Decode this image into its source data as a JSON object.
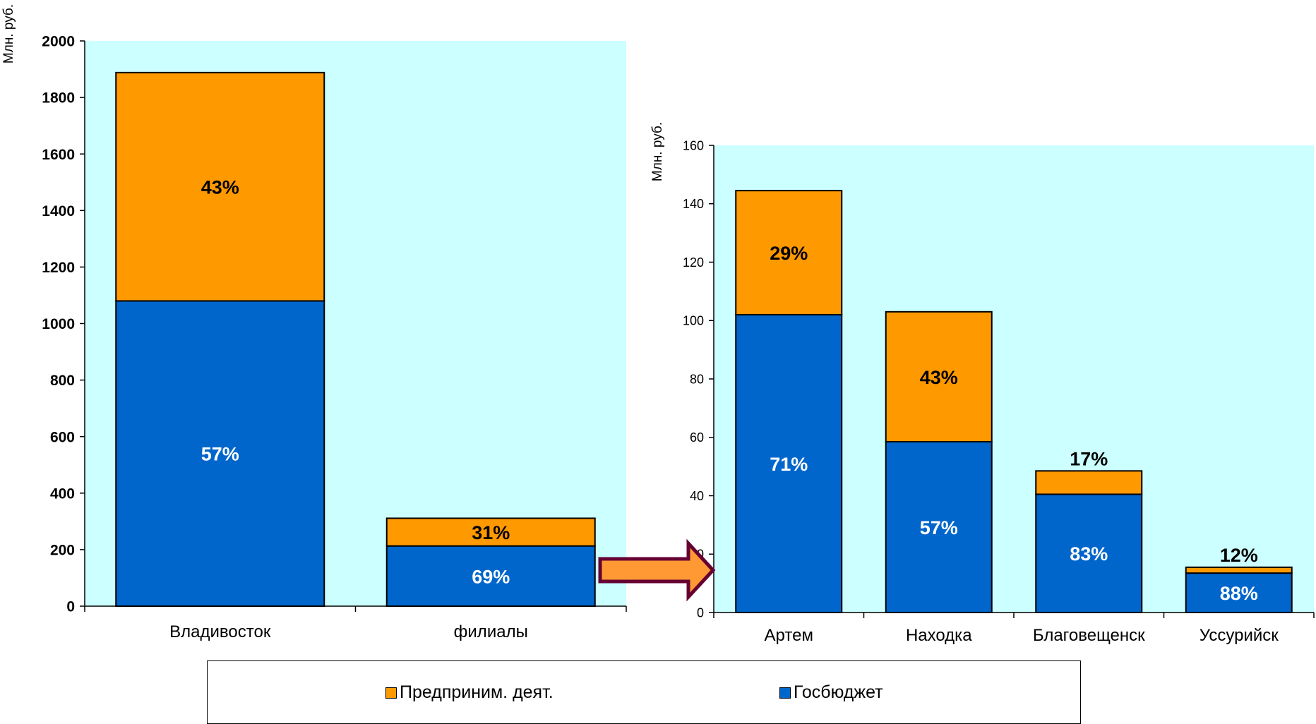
{
  "chart_data": [
    {
      "type": "bar",
      "stacked": true,
      "ylabel": "Млн. руб.",
      "ylim": [
        0,
        2000
      ],
      "yticks": [
        "0",
        "200",
        "400",
        "600",
        "800",
        "1000",
        "1200",
        "1400",
        "1600",
        "1800",
        "2000"
      ],
      "categories": [
        "Владивосток",
        "филиалы"
      ],
      "series": [
        {
          "name": "Госбюджет",
          "values": [
            1080,
            213
          ],
          "labels": [
            "57%",
            "69%"
          ]
        },
        {
          "name": "Предприним. деят.",
          "values": [
            808,
            98
          ],
          "labels": [
            "43%",
            "31%"
          ]
        }
      ],
      "background": "#ccffff",
      "colors": {
        "Госбюджет": "#0066cc",
        "Предприним. деят.": "#ff9900"
      }
    },
    {
      "type": "bar",
      "stacked": true,
      "ylabel": "Млн. руб.",
      "ylim": [
        0,
        160
      ],
      "yticks": [
        "0",
        "20",
        "40",
        "60",
        "80",
        "100",
        "120",
        "140",
        "160"
      ],
      "categories": [
        "Артем",
        "Находка",
        "Благовещенск",
        "Уссурийск"
      ],
      "series": [
        {
          "name": "Госбюджет",
          "values": [
            102,
            58.5,
            40.5,
            13.5
          ],
          "labels": [
            "71%",
            "57%",
            "83%",
            "88%"
          ]
        },
        {
          "name": "Предприним. деят.",
          "values": [
            42.5,
            44.5,
            8,
            2
          ],
          "labels": [
            "29%",
            "43%",
            "17%",
            "12%"
          ]
        }
      ],
      "background": "#ccffff",
      "colors": {
        "Госбюджет": "#0066cc",
        "Предприним. деят.": "#ff9900"
      }
    }
  ],
  "legend": {
    "items": [
      {
        "label": "Предприним. деят.",
        "color": "#ff9900"
      },
      {
        "label": "Госбюджет",
        "color": "#0066cc"
      }
    ]
  },
  "colors": {
    "arrow_fill": "#ff9933",
    "arrow_stroke": "#660033",
    "text_dark": "#000000",
    "text_light": "#ffffff"
  }
}
